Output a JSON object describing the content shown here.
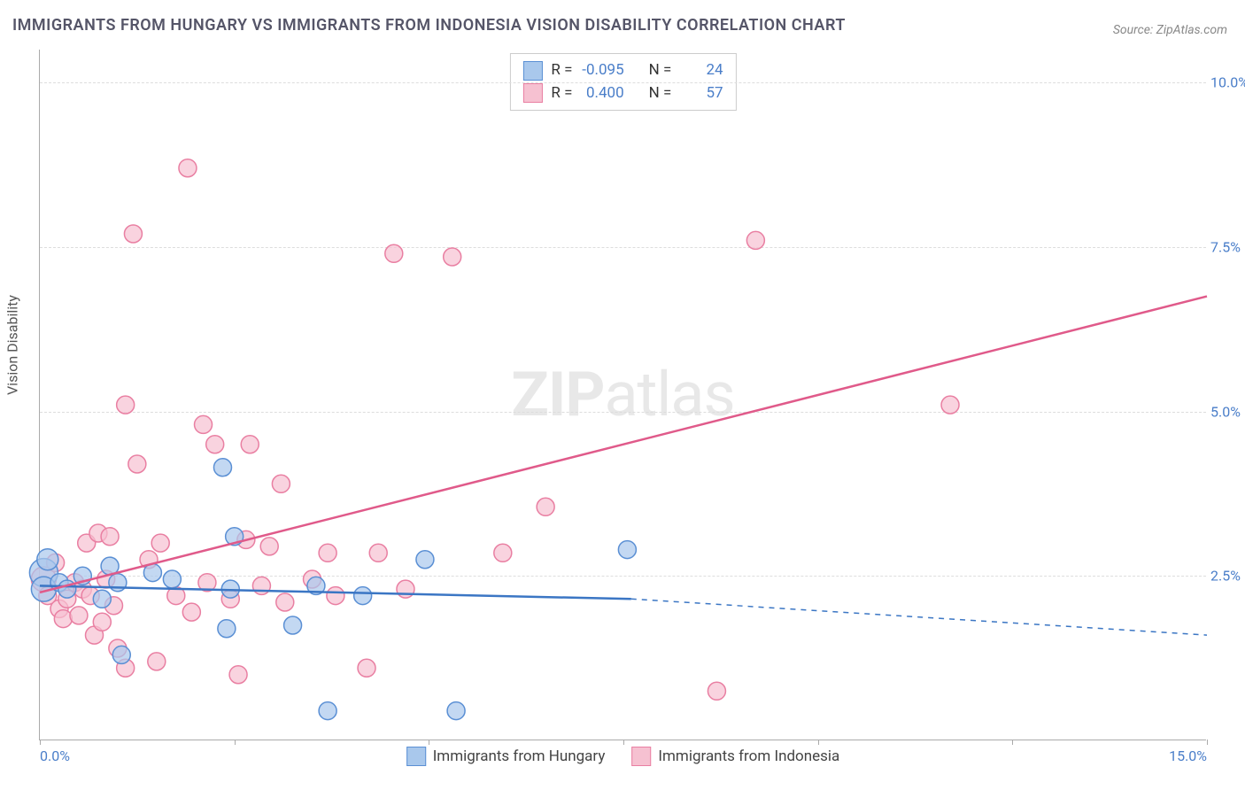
{
  "title": "IMMIGRANTS FROM HUNGARY VS IMMIGRANTS FROM INDONESIA VISION DISABILITY CORRELATION CHART",
  "source": "Source: ZipAtlas.com",
  "ylabel": "Vision Disability",
  "watermark_a": "ZIP",
  "watermark_b": "atlas",
  "chart": {
    "type": "scatter",
    "xlim": [
      0,
      15
    ],
    "ylim": [
      0,
      10.5
    ],
    "x_ticks": [
      0,
      5,
      10,
      15
    ],
    "x_tick_labels": [
      "0.0%",
      "",
      "",
      "15.0%"
    ],
    "x_minor_ticks": [
      2.5,
      7.5,
      12.5
    ],
    "y_ticks": [
      2.5,
      5.0,
      7.5,
      10.0
    ],
    "y_tick_labels": [
      "2.5%",
      "5.0%",
      "7.5%",
      "10.0%"
    ],
    "grid_color": "#dddddd",
    "axis_color": "#aaaaaa",
    "background": "#ffffff",
    "series": [
      {
        "name": "Immigrants from Hungary",
        "fill": "#a9c8ec",
        "stroke": "#5a8fd4",
        "line_color": "#3b76c4",
        "R_label": "R = ",
        "R": "-0.095",
        "N_label": "N = ",
        "N": "24",
        "regression": {
          "x1": 0,
          "y1": 2.35,
          "x2": 7.6,
          "y2": 2.15,
          "dash_to_x": 15,
          "dash_to_y": 1.6
        },
        "points": [
          {
            "x": 0.05,
            "y": 2.55,
            "r": 16
          },
          {
            "x": 0.05,
            "y": 2.3,
            "r": 14
          },
          {
            "x": 0.1,
            "y": 2.75,
            "r": 12
          },
          {
            "x": 0.25,
            "y": 2.4
          },
          {
            "x": 0.35,
            "y": 2.3
          },
          {
            "x": 0.55,
            "y": 2.5
          },
          {
            "x": 0.8,
            "y": 2.15
          },
          {
            "x": 0.9,
            "y": 2.65
          },
          {
            "x": 1.0,
            "y": 2.4
          },
          {
            "x": 1.05,
            "y": 1.3
          },
          {
            "x": 1.45,
            "y": 2.55
          },
          {
            "x": 1.7,
            "y": 2.45
          },
          {
            "x": 2.35,
            "y": 4.15
          },
          {
            "x": 2.4,
            "y": 1.7
          },
          {
            "x": 2.45,
            "y": 2.3
          },
          {
            "x": 2.5,
            "y": 3.1
          },
          {
            "x": 3.25,
            "y": 1.75
          },
          {
            "x": 3.55,
            "y": 2.35
          },
          {
            "x": 3.7,
            "y": 0.45
          },
          {
            "x": 4.15,
            "y": 2.2
          },
          {
            "x": 4.95,
            "y": 2.75
          },
          {
            "x": 5.35,
            "y": 0.45
          },
          {
            "x": 7.55,
            "y": 2.9
          }
        ]
      },
      {
        "name": "Immigrants from Indonesia",
        "fill": "#f6c1d1",
        "stroke": "#e97fa2",
        "line_color": "#e05a8a",
        "R_label": "R = ",
        "R": "0.400",
        "N_label": "N = ",
        "N": "57",
        "regression": {
          "x1": 0,
          "y1": 2.25,
          "x2": 15,
          "y2": 6.75
        },
        "points": [
          {
            "x": 0.05,
            "y": 2.45,
            "r": 14
          },
          {
            "x": 0.1,
            "y": 2.2
          },
          {
            "x": 0.2,
            "y": 2.7
          },
          {
            "x": 0.25,
            "y": 2.0
          },
          {
            "x": 0.3,
            "y": 1.85
          },
          {
            "x": 0.35,
            "y": 2.15
          },
          {
            "x": 0.45,
            "y": 2.4
          },
          {
            "x": 0.5,
            "y": 1.9
          },
          {
            "x": 0.55,
            "y": 2.3
          },
          {
            "x": 0.6,
            "y": 3.0
          },
          {
            "x": 0.65,
            "y": 2.2
          },
          {
            "x": 0.7,
            "y": 1.6
          },
          {
            "x": 0.75,
            "y": 3.15
          },
          {
            "x": 0.8,
            "y": 1.8
          },
          {
            "x": 0.85,
            "y": 2.45
          },
          {
            "x": 0.9,
            "y": 3.1
          },
          {
            "x": 0.95,
            "y": 2.05
          },
          {
            "x": 1.0,
            "y": 1.4
          },
          {
            "x": 1.1,
            "y": 5.1
          },
          {
            "x": 1.1,
            "y": 1.1
          },
          {
            "x": 1.2,
            "y": 7.7
          },
          {
            "x": 1.25,
            "y": 4.2
          },
          {
            "x": 1.4,
            "y": 2.75
          },
          {
            "x": 1.5,
            "y": 1.2
          },
          {
            "x": 1.55,
            "y": 3.0
          },
          {
            "x": 1.75,
            "y": 2.2
          },
          {
            "x": 1.9,
            "y": 8.7
          },
          {
            "x": 1.95,
            "y": 1.95
          },
          {
            "x": 2.1,
            "y": 4.8
          },
          {
            "x": 2.15,
            "y": 2.4
          },
          {
            "x": 2.25,
            "y": 4.5
          },
          {
            "x": 2.45,
            "y": 2.15
          },
          {
            "x": 2.55,
            "y": 1.0
          },
          {
            "x": 2.65,
            "y": 3.05
          },
          {
            "x": 2.7,
            "y": 4.5
          },
          {
            "x": 2.85,
            "y": 2.35
          },
          {
            "x": 2.95,
            "y": 2.95
          },
          {
            "x": 3.1,
            "y": 3.9
          },
          {
            "x": 3.15,
            "y": 2.1
          },
          {
            "x": 3.5,
            "y": 2.45
          },
          {
            "x": 3.7,
            "y": 2.85
          },
          {
            "x": 3.8,
            "y": 2.2
          },
          {
            "x": 4.2,
            "y": 1.1
          },
          {
            "x": 4.35,
            "y": 2.85
          },
          {
            "x": 4.55,
            "y": 7.4
          },
          {
            "x": 4.7,
            "y": 2.3
          },
          {
            "x": 5.3,
            "y": 7.35
          },
          {
            "x": 5.95,
            "y": 2.85
          },
          {
            "x": 6.5,
            "y": 3.55
          },
          {
            "x": 8.7,
            "y": 0.75
          },
          {
            "x": 9.2,
            "y": 7.6
          },
          {
            "x": 11.7,
            "y": 5.1
          }
        ]
      }
    ]
  },
  "legend_bottom": [
    {
      "label": "Immigrants from Hungary",
      "fill": "#a9c8ec",
      "stroke": "#5a8fd4"
    },
    {
      "label": "Immigrants from Indonesia",
      "fill": "#f6c1d1",
      "stroke": "#e97fa2"
    }
  ]
}
